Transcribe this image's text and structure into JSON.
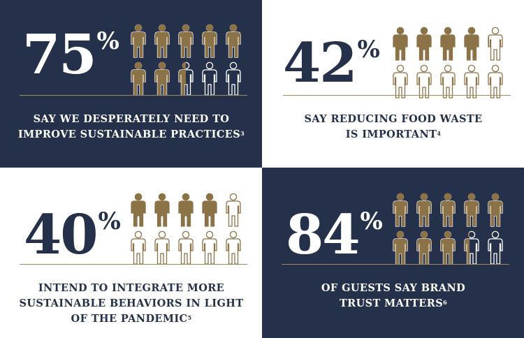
{
  "colors": {
    "navy": "#25304a",
    "gold": "#8b7347",
    "white": "#ffffff"
  },
  "icon": "person-icon",
  "stats": [
    {
      "number": "75",
      "percent_sign": "%",
      "filled": 7.5,
      "caption_line1": "SAY WE DESPERATELY NEED TO",
      "caption_line2": "IMPROVE SUSTAINABLE PRACTICES",
      "footnote": "3"
    },
    {
      "number": "42",
      "percent_sign": "%",
      "filled": 4.2,
      "caption_line1": "SAY REDUCING FOOD WASTE",
      "caption_line2": "IS IMPORTANT",
      "footnote": "4"
    },
    {
      "number": "40",
      "percent_sign": "%",
      "filled": 4.0,
      "caption_line1": "INTEND TO INTEGRATE MORE",
      "caption_line2": "SUSTAINABLE BEHAVIORS IN LIGHT",
      "caption_line3": "OF THE PANDEMIC",
      "footnote": "5"
    },
    {
      "number": "84",
      "percent_sign": "%",
      "filled": 8.4,
      "caption_line1": "OF GUESTS SAY BRAND",
      "caption_line2": "TRUST MATTERS",
      "footnote": "6"
    }
  ]
}
